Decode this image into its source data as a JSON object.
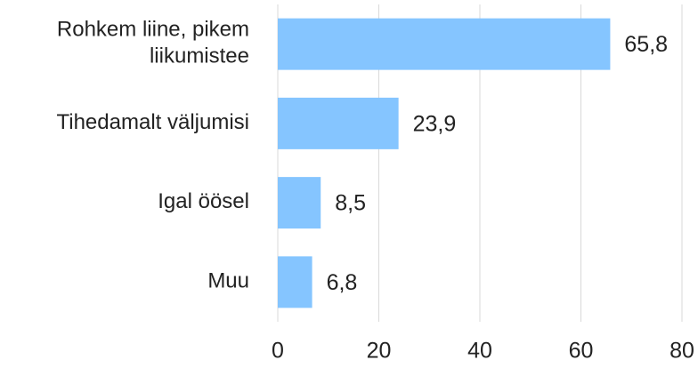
{
  "chart_data": {
    "type": "bar",
    "orientation": "horizontal",
    "categories": [
      "Rohkem liine, pikem liikumistee",
      "Tihedamalt väljumisi",
      "Igal öösel",
      "Muu"
    ],
    "values": [
      65.8,
      23.9,
      8.5,
      6.8
    ],
    "value_labels": [
      "65,8",
      "23,9",
      "8,5",
      "6,8"
    ],
    "color": "#85c5ff",
    "xlim": [
      0,
      80
    ],
    "xticks": [
      0,
      20,
      40,
      60,
      80
    ],
    "grid": true
  }
}
